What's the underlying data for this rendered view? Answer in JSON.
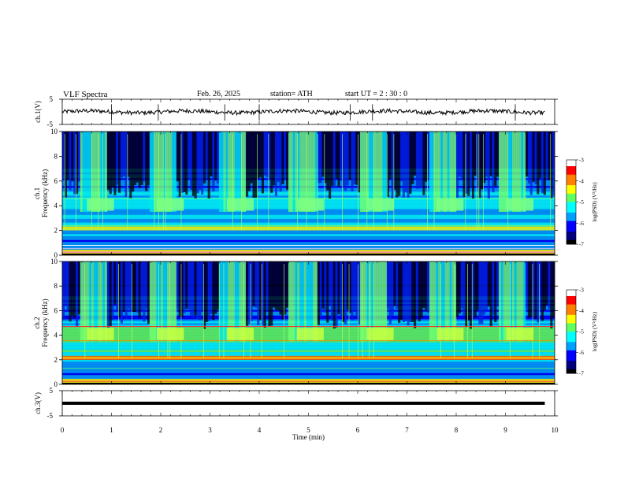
{
  "header": {
    "title": "VLF  Spectra",
    "date": "Feb. 26, 2025",
    "station": "station= ATH",
    "start": "start  UT  =   2  : 30 : 0"
  },
  "chart_data": [
    {
      "type": "line",
      "panel": "ch1-waveform",
      "ylabel": "ch.1(V)",
      "ylim": [
        -5,
        5
      ],
      "yticks": [
        "5",
        "-5"
      ],
      "xlim": [
        0,
        10
      ]
    },
    {
      "type": "heatmap",
      "panel": "ch1-spectrogram",
      "ylabel_lines": [
        "ch.1",
        "Frequency  (kHz)"
      ],
      "ylim": [
        0,
        10
      ],
      "yticks": [
        "0",
        "2",
        "4",
        "6",
        "8",
        "10"
      ],
      "xlim": [
        0,
        10
      ],
      "colorbar": {
        "label": "log(PSD) (V²/Hz)",
        "range": [
          -7,
          -3
        ],
        "ticks": [
          "-3",
          "-4",
          "-5",
          "-6",
          "-7"
        ]
      }
    },
    {
      "type": "heatmap",
      "panel": "ch2-spectrogram",
      "ylabel_lines": [
        "ch.2",
        "Frequency  (kHz)"
      ],
      "ylim": [
        0,
        10
      ],
      "yticks": [
        "0",
        "2",
        "4",
        "6",
        "8",
        "10"
      ],
      "xlim": [
        0,
        10
      ],
      "colorbar": {
        "label": "log(PSD) (V²/Hz)",
        "range": [
          -7,
          -3
        ],
        "ticks": [
          "-3",
          "-4",
          "-5",
          "-6",
          "-7"
        ]
      }
    },
    {
      "type": "line",
      "panel": "ch3-waveform",
      "ylabel": "ch.3(V)",
      "ylim": [
        -5,
        5
      ],
      "yticks": [
        "5",
        "-5"
      ],
      "xlim": [
        0,
        10
      ],
      "constant_value": 0
    }
  ],
  "xaxis": {
    "label": "Time  (min)",
    "ticks": [
      "0",
      "1",
      "2",
      "3",
      "4",
      "5",
      "6",
      "7",
      "8",
      "9",
      "10"
    ]
  },
  "colors": {
    "colormap": [
      "#000000",
      "#00007f",
      "#0000ff",
      "#00a0ff",
      "#00ffff",
      "#60ff60",
      "#ffff00",
      "#ff8000",
      "#ff0000",
      "#ffffff"
    ]
  }
}
